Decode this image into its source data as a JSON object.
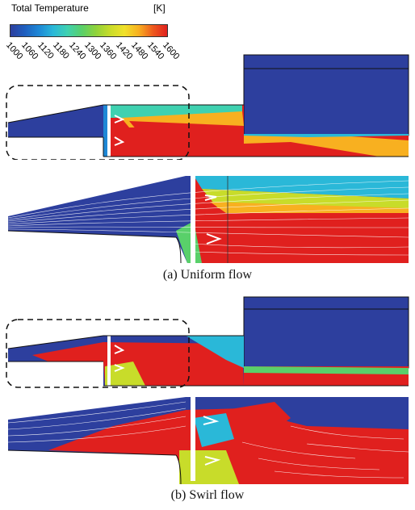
{
  "legend": {
    "title": "Total Temperature",
    "unit": "[K]",
    "ticks": [
      "1000",
      "1060",
      "1120",
      "1180",
      "1240",
      "1300",
      "1360",
      "1420",
      "1480",
      "1540",
      "1600"
    ],
    "colors": [
      "#2d3f9e",
      "#1f5fbf",
      "#1e88d6",
      "#2ab8d8",
      "#3fd1b0",
      "#59d06a",
      "#8fd23a",
      "#c8dc2a",
      "#f0e12a",
      "#f8b020",
      "#ee5a1e",
      "#e0201e"
    ]
  },
  "panels": {
    "uniform_caption": "(a)  Uniform  flow",
    "swirl_caption": "(b)  Swirl  flow"
  }
}
